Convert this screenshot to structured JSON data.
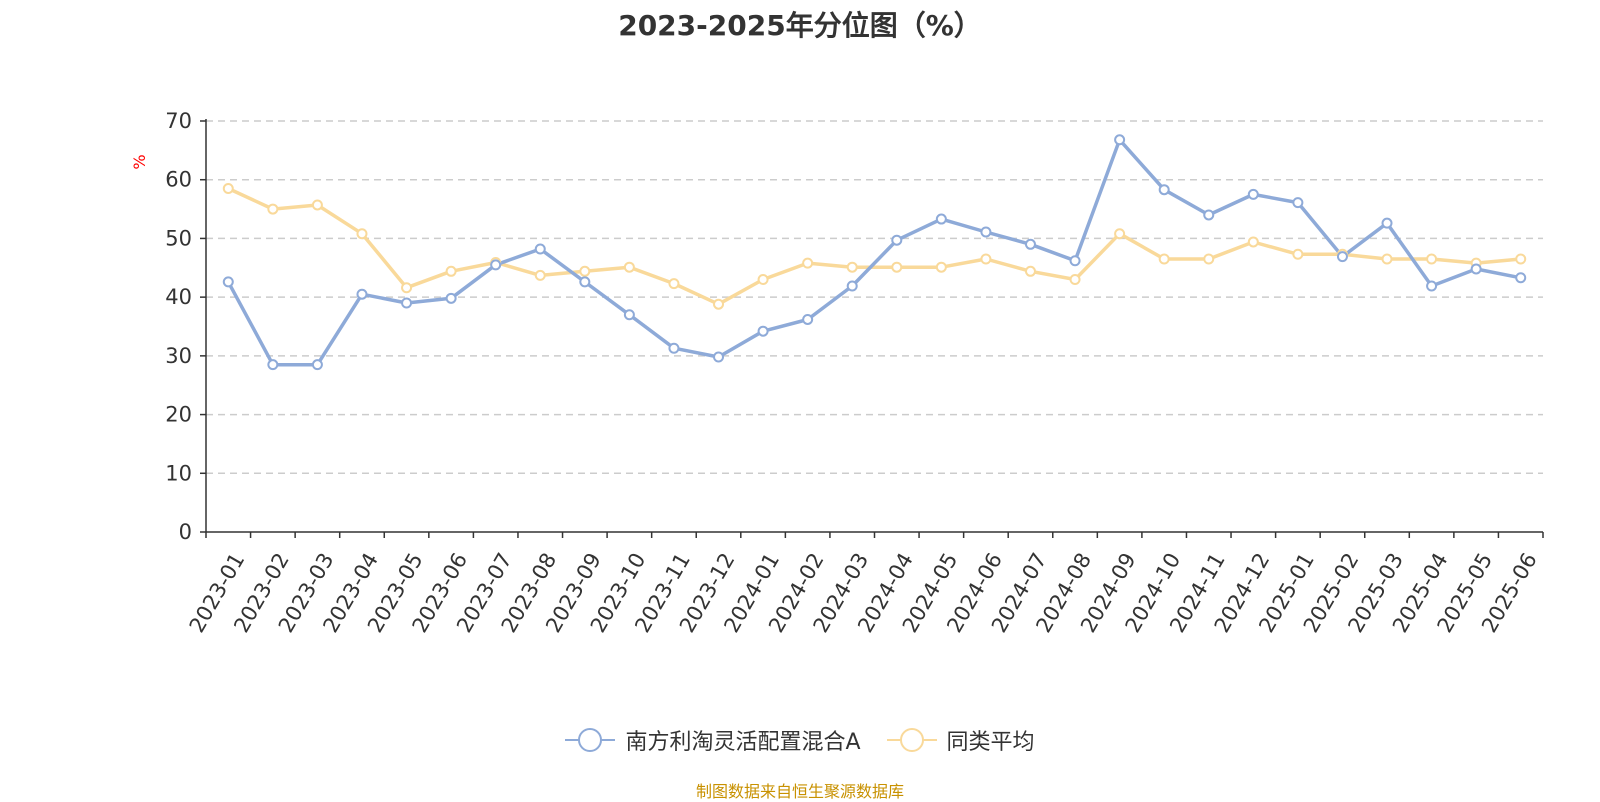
{
  "chart_data": {
    "type": "line",
    "title": "2023-2025年分位图（%）",
    "ylabel": "%",
    "xlabel": "",
    "ylim": [
      0,
      70
    ],
    "yticks": [
      0,
      10,
      20,
      30,
      40,
      50,
      60,
      70
    ],
    "grid": true,
    "legend_position": "bottom-center",
    "categories": [
      "2023-01",
      "2023-02",
      "2023-03",
      "2023-04",
      "2023-05",
      "2023-06",
      "2023-07",
      "2023-08",
      "2023-09",
      "2023-10",
      "2023-11",
      "2023-12",
      "2024-01",
      "2024-02",
      "2024-03",
      "2024-04",
      "2024-05",
      "2024-06",
      "2024-07",
      "2024-08",
      "2024-09",
      "2024-10",
      "2024-11",
      "2024-12",
      "2025-01",
      "2025-02",
      "2025-03",
      "2025-04",
      "2025-05",
      "2025-06"
    ],
    "series": [
      {
        "name": "南方利淘灵活配置混合A",
        "color": "#8eaad8",
        "values": [
          42.6,
          28.5,
          28.5,
          40.5,
          39.0,
          39.8,
          45.5,
          48.2,
          42.6,
          37.0,
          31.3,
          29.8,
          34.2,
          36.2,
          41.9,
          49.7,
          53.3,
          51.1,
          49.0,
          46.2,
          66.8,
          58.3,
          54.0,
          57.5,
          56.1,
          46.9,
          52.6,
          41.9,
          44.8,
          43.3
        ]
      },
      {
        "name": "同类平均",
        "color": "#f9d99a",
        "values": [
          58.5,
          55.0,
          55.7,
          50.8,
          41.6,
          44.4,
          45.9,
          43.7,
          44.4,
          45.1,
          42.3,
          38.8,
          43.0,
          45.8,
          45.1,
          45.1,
          45.1,
          46.5,
          44.4,
          43.0,
          50.8,
          46.5,
          46.5,
          49.4,
          47.3,
          47.3,
          46.5,
          46.5,
          45.8,
          46.5
        ]
      }
    ]
  },
  "source": "制图数据来自恒生聚源数据库"
}
